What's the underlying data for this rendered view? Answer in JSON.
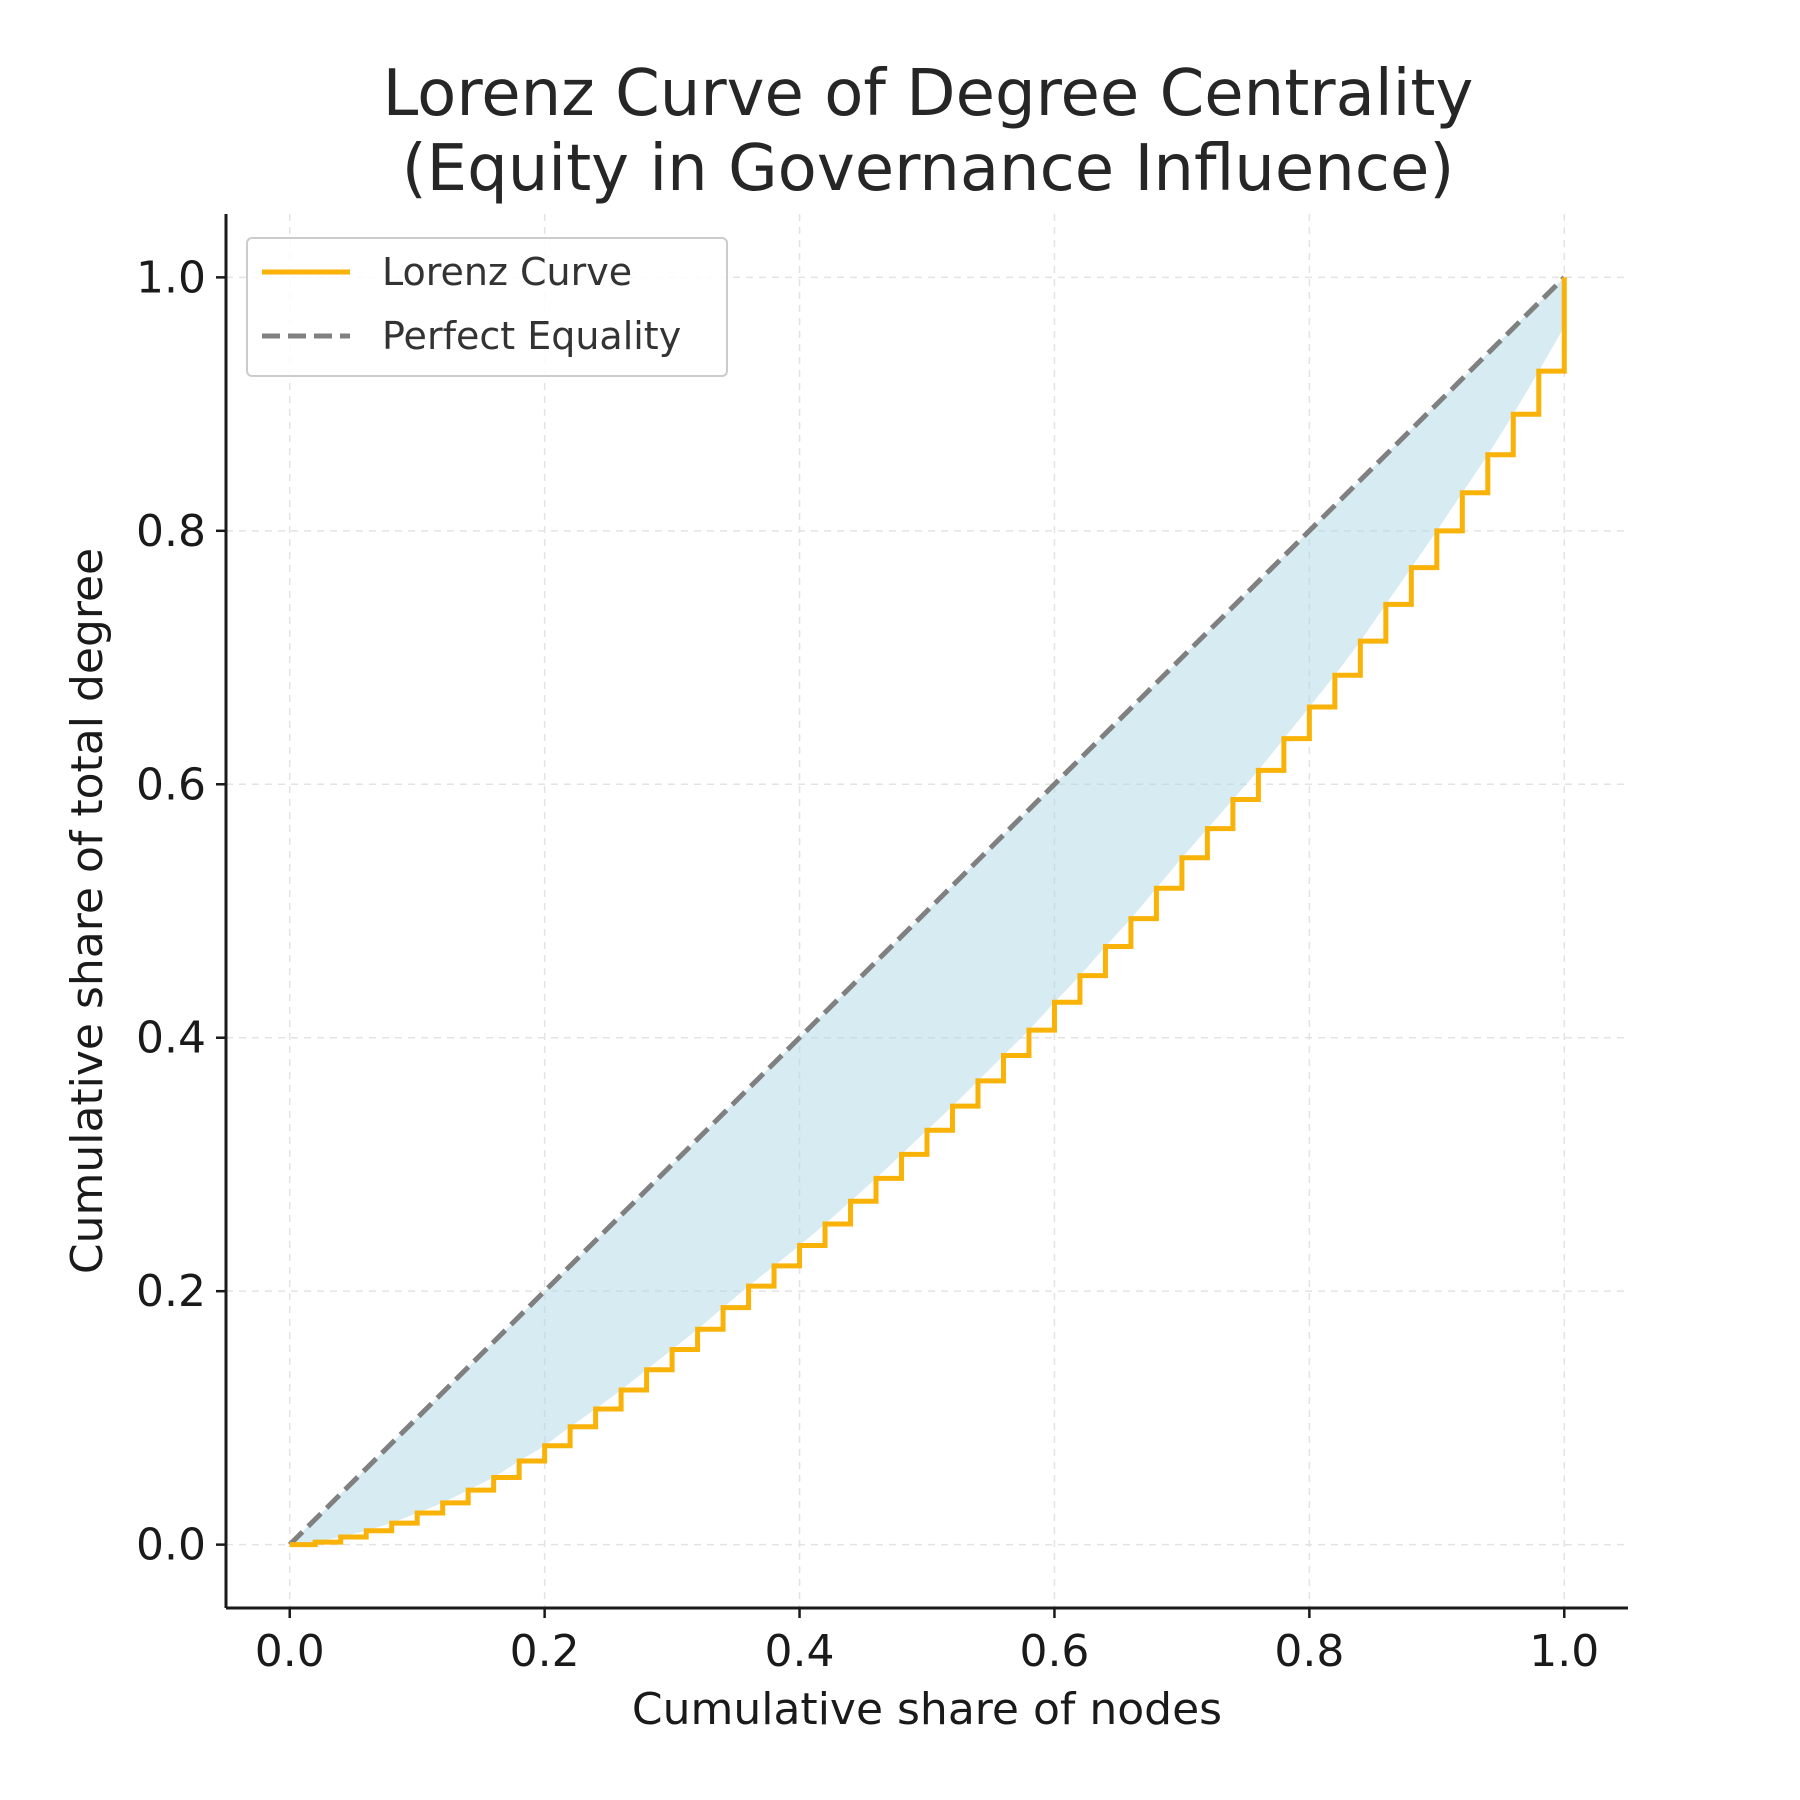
{
  "chart_data": {
    "type": "line",
    "title": [
      "Lorenz Curve of Degree Centrality",
      "(Equity in Governance Influence)"
    ],
    "xlabel": "Cumulative share of nodes",
    "ylabel": "Cumulative share of total degree",
    "xlim": [
      -0.05,
      1.05
    ],
    "ylim": [
      -0.05,
      1.05
    ],
    "x_ticks": [
      0.0,
      0.2,
      0.4,
      0.6,
      0.8,
      1.0
    ],
    "y_ticks": [
      0.0,
      0.2,
      0.4,
      0.6,
      0.8,
      1.0
    ],
    "x_tick_labels": [
      "0.0",
      "0.2",
      "0.4",
      "0.6",
      "0.8",
      "1.0"
    ],
    "y_tick_labels": [
      "0.0",
      "0.2",
      "0.4",
      "0.6",
      "0.8",
      "1.0"
    ],
    "grid": true,
    "legend_position": "top-left",
    "fill_between": {
      "color": "#add8e6",
      "opacity": 0.5,
      "between": [
        "Lorenz Curve",
        "Perfect Equality"
      ]
    },
    "series": [
      {
        "name": "Lorenz Curve",
        "color": "#f9b208",
        "style": "steps-post",
        "x": [
          0.0,
          0.02,
          0.04,
          0.06,
          0.08,
          0.1,
          0.12,
          0.14,
          0.16,
          0.18,
          0.2,
          0.22,
          0.24,
          0.26,
          0.28,
          0.3,
          0.32,
          0.34,
          0.36,
          0.38,
          0.4,
          0.42,
          0.44,
          0.46,
          0.48,
          0.5,
          0.52,
          0.54,
          0.56,
          0.58,
          0.6,
          0.62,
          0.64,
          0.66,
          0.68,
          0.7,
          0.72,
          0.74,
          0.76,
          0.78,
          0.8,
          0.82,
          0.84,
          0.86,
          0.88,
          0.9,
          0.92,
          0.94,
          0.96,
          0.98,
          1.0
        ],
        "y": [
          0.0,
          0.002,
          0.006,
          0.011,
          0.017,
          0.025,
          0.033,
          0.043,
          0.053,
          0.066,
          0.078,
          0.093,
          0.107,
          0.122,
          0.138,
          0.154,
          0.17,
          0.187,
          0.204,
          0.22,
          0.236,
          0.253,
          0.271,
          0.289,
          0.308,
          0.327,
          0.346,
          0.366,
          0.386,
          0.406,
          0.428,
          0.449,
          0.472,
          0.494,
          0.518,
          0.542,
          0.565,
          0.588,
          0.611,
          0.636,
          0.661,
          0.686,
          0.713,
          0.742,
          0.771,
          0.8,
          0.83,
          0.86,
          0.892,
          0.926,
          0.961
        ]
      },
      {
        "name": "Perfect Equality",
        "color": "#808080",
        "style": "dashed",
        "x": [
          0.0,
          1.0
        ],
        "y": [
          0.0,
          1.0
        ]
      }
    ]
  }
}
